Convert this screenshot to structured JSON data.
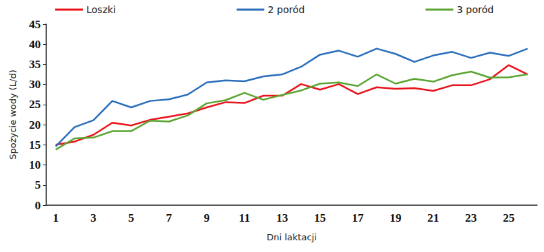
{
  "chart_data": {
    "type": "line",
    "x_label": "Dni laktacji",
    "y_label": "Spożycie wody (L/d)",
    "categories": [
      "1",
      null,
      "3",
      null,
      "5",
      null,
      "7",
      null,
      "9",
      null,
      "11",
      null,
      "13",
      null,
      "15",
      null,
      "17",
      null,
      "19",
      null,
      "21",
      null,
      "23",
      null,
      "25",
      null
    ],
    "series": [
      {
        "name": "Loszki",
        "color": "#e8141b",
        "values": [
          15.0,
          15.8,
          17.5,
          20.5,
          19.8,
          21.2,
          22.0,
          22.8,
          24.3,
          25.6,
          25.4,
          27.2,
          27.2,
          30.1,
          28.7,
          30.1,
          27.6,
          29.3,
          28.9,
          29.1,
          28.4,
          29.8,
          29.8,
          31.3,
          34.8,
          32.5
        ]
      },
      {
        "name": "2 poród",
        "color": "#2a6ebb",
        "values": [
          14.6,
          19.4,
          21.1,
          25.9,
          24.3,
          25.9,
          26.3,
          27.5,
          30.5,
          31.0,
          30.8,
          32.0,
          32.5,
          34.4,
          37.4,
          38.4,
          36.9,
          38.9,
          37.6,
          35.6,
          37.2,
          38.1,
          36.6,
          37.9,
          37.1,
          38.9
        ]
      },
      {
        "name": "3 poród",
        "color": "#5aa532",
        "values": [
          13.8,
          16.6,
          16.8,
          18.4,
          18.4,
          21.0,
          20.8,
          22.3,
          25.3,
          26.1,
          27.9,
          26.2,
          27.4,
          28.5,
          30.2,
          30.5,
          29.6,
          32.5,
          30.2,
          31.4,
          30.7,
          32.3,
          33.2,
          31.7,
          31.8,
          32.5
        ]
      }
    ],
    "ylim": [
      0,
      45
    ],
    "yticks": [
      0,
      5,
      10,
      15,
      20,
      25,
      30,
      35,
      40,
      45
    ],
    "grid": false,
    "legend": "top-left"
  }
}
